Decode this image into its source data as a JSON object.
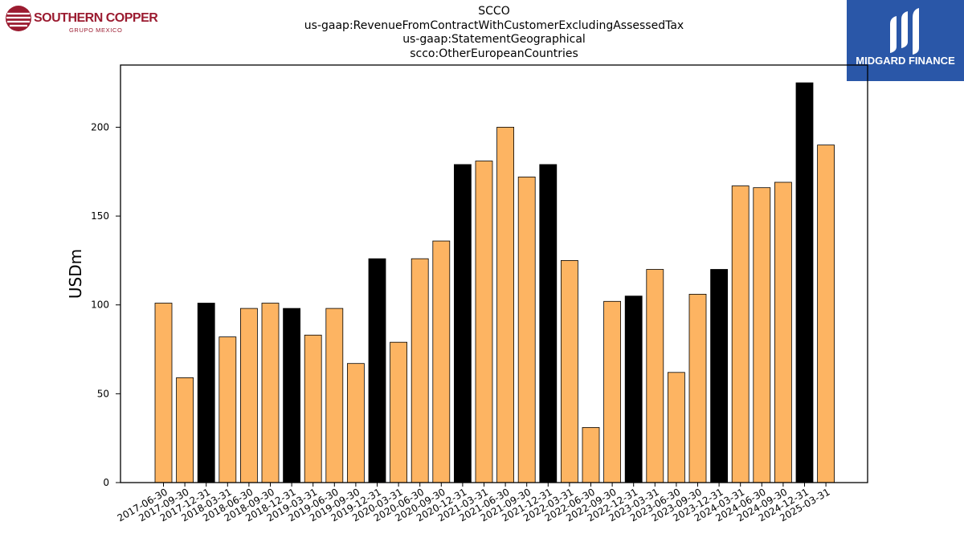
{
  "logos": {
    "left": {
      "name": "SOUTHERN COPPER",
      "subtitle": "GRUPO MEXICO",
      "color": "#9b1b30"
    },
    "right": {
      "name": "MIDGARD FINANCE",
      "background": "#2a57a8"
    }
  },
  "colors": {
    "bar_default": "#fdb462",
    "bar_highlight": "#000000",
    "bar_edge": "#000000"
  },
  "chart_data": {
    "type": "bar",
    "title_lines": [
      "SCCO",
      "us-gaap:RevenueFromContractWithCustomerExcludingAssessedTax",
      "us-gaap:StatementGeographical",
      "scco:OtherEuropeanCountries"
    ],
    "xlabel": "",
    "ylabel": "USDm",
    "ylim": [
      0,
      235
    ],
    "yticks": [
      0,
      50,
      100,
      150,
      200
    ],
    "grid": false,
    "categories": [
      "2017-06-30",
      "2017-09-30",
      "2017-12-31",
      "2018-03-31",
      "2018-06-30",
      "2018-09-30",
      "2018-12-31",
      "2019-03-31",
      "2019-06-30",
      "2019-09-30",
      "2019-12-31",
      "2020-03-31",
      "2020-06-30",
      "2020-09-30",
      "2020-12-31",
      "2021-03-31",
      "2021-06-30",
      "2021-09-30",
      "2021-12-31",
      "2022-03-31",
      "2022-06-30",
      "2022-09-30",
      "2022-12-31",
      "2023-03-31",
      "2023-06-30",
      "2023-09-30",
      "2023-12-31",
      "2024-03-31",
      "2024-06-30",
      "2024-09-30",
      "2024-12-31",
      "2025-03-31"
    ],
    "values": [
      101,
      59,
      101,
      82,
      98,
      101,
      98,
      83,
      98,
      67,
      126,
      79,
      126,
      136,
      179,
      181,
      200,
      172,
      179,
      125,
      31,
      102,
      105,
      120,
      62,
      106,
      120,
      167,
      166,
      169,
      225,
      190
    ],
    "highlight": [
      false,
      false,
      true,
      false,
      false,
      false,
      true,
      false,
      false,
      false,
      true,
      false,
      false,
      false,
      true,
      false,
      false,
      false,
      true,
      false,
      false,
      false,
      true,
      false,
      false,
      false,
      true,
      false,
      false,
      false,
      true,
      false
    ]
  }
}
